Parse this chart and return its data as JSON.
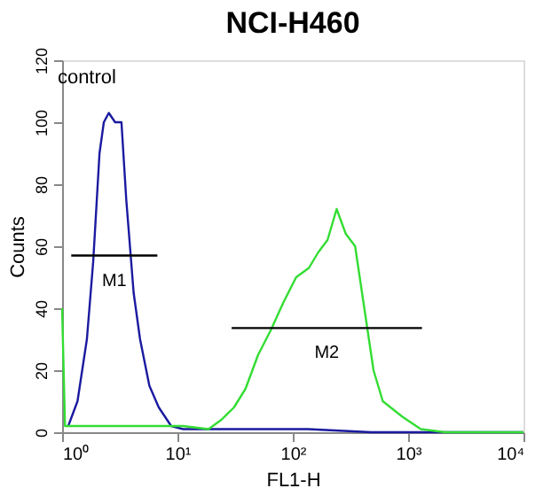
{
  "chart_data": {
    "type": "line",
    "title": "NCI-H460",
    "xlabel": "FL1-H",
    "ylabel": "Counts",
    "log": "x",
    "xlim": [
      1,
      10000
    ],
    "ylim": [
      0,
      120
    ],
    "xticks": [
      {
        "value": 1,
        "label": "10⁰"
      },
      {
        "value": 10,
        "label": "10¹"
      },
      {
        "value": 100,
        "label": "10²"
      },
      {
        "value": 1000,
        "label": "10³"
      },
      {
        "value": 10000,
        "label": "10⁴"
      }
    ],
    "yticks": [
      0,
      20,
      40,
      60,
      80,
      100,
      120
    ],
    "grid": false,
    "legend": false,
    "marker": "none",
    "line_style": "solid",
    "series": [
      {
        "name": "control",
        "color": "#1a1aa0",
        "x": [
          1.13,
          1.36,
          1.64,
          1.86,
          2.11,
          2.3,
          2.54,
          2.88,
          3.27,
          3.6,
          4.17,
          4.74,
          5.71,
          6.89,
          8.83,
          11.2,
          39.8,
          135,
          479,
          10000
        ],
        "values": [
          2,
          10,
          30,
          55,
          90,
          100,
          103,
          100,
          100,
          75,
          45,
          30,
          15,
          8,
          2,
          1,
          1,
          1,
          0,
          0
        ]
      },
      {
        "color": "#33dd33",
        "x": [
          1,
          1.06,
          3.24,
          11.2,
          18.6,
          24,
          30.9,
          38.9,
          50.1,
          64.6,
          83.2,
          107,
          138,
          166,
          200,
          240,
          288,
          347,
          417,
          501,
          603,
          891,
          1288,
          2089,
          10000
        ],
        "values": [
          40,
          2,
          2,
          2,
          1,
          4,
          8,
          14,
          25,
          33,
          42,
          50,
          53,
          58,
          62,
          72,
          64,
          60,
          40,
          20,
          10,
          5,
          1,
          0,
          0
        ]
      },
      {
        "type": "line",
        "color": "#000000",
        "x": [
          1.2,
          6.7
        ],
        "values": [
          57,
          57
        ]
      },
      {
        "type": "line",
        "color": "#000000",
        "x": [
          29.5,
          1318
        ],
        "values": [
          33.6,
          33.6
        ]
      }
    ],
    "annotations": [
      "M1",
      "M2"
    ]
  }
}
